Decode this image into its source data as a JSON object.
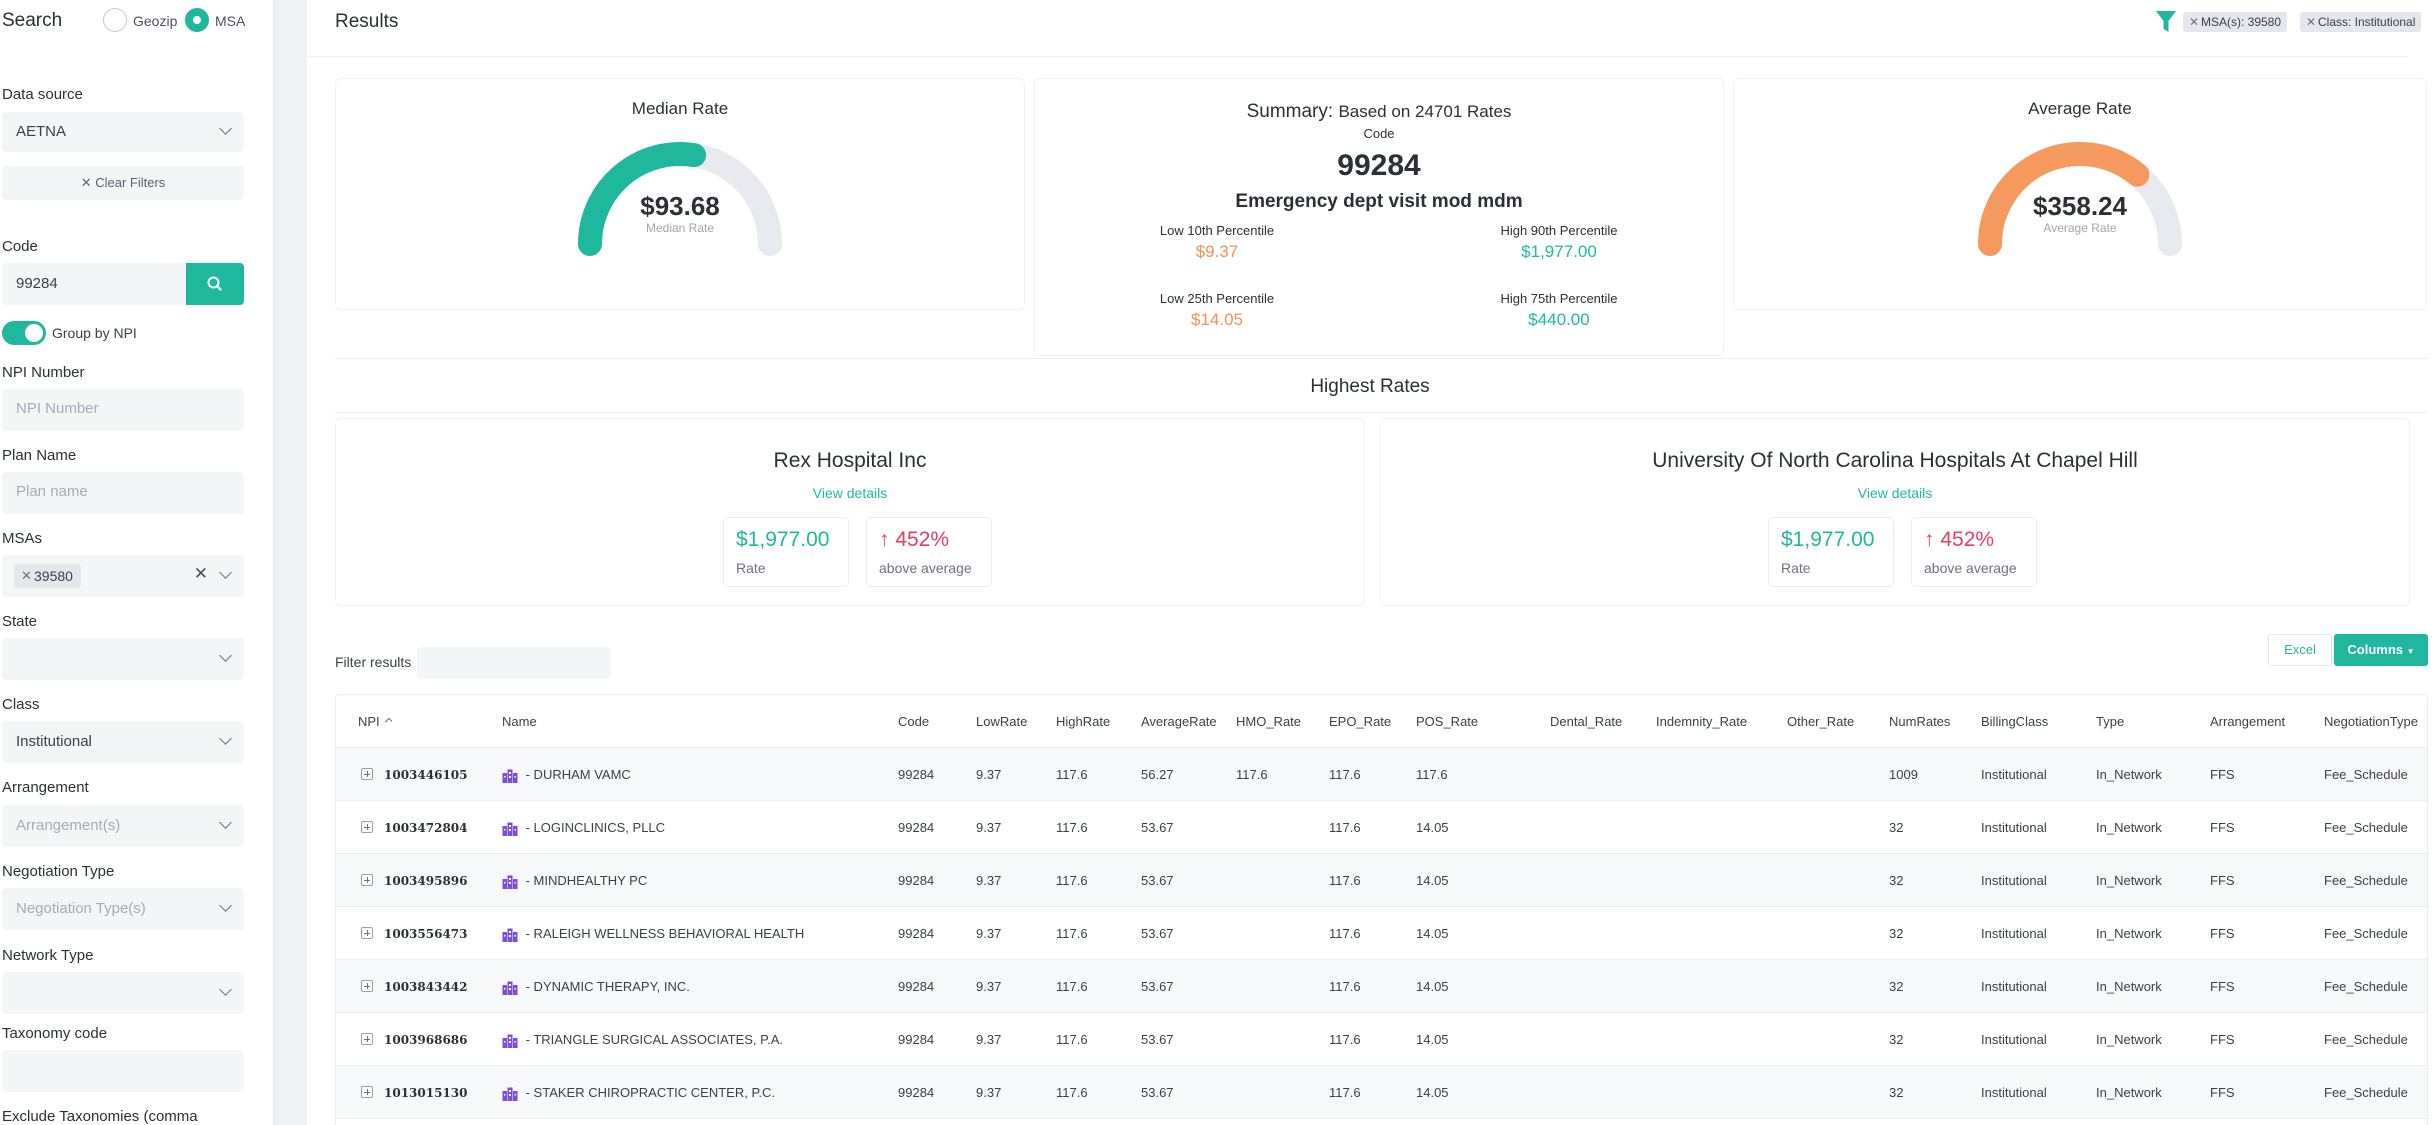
{
  "sidebar": {
    "title": "Search",
    "radio_geozip": "Geozip",
    "radio_msa": "MSA",
    "data_source_label": "Data source",
    "data_source_value": "AETNA",
    "clear_filters": "Clear Filters",
    "code_label": "Code",
    "code_value": "99284",
    "group_by_npi": "Group by NPI",
    "npi_label": "NPI Number",
    "npi_placeholder": "NPI Number",
    "plan_label": "Plan Name",
    "plan_placeholder": "Plan name",
    "msas_label": "MSAs",
    "msa_chip": "39580",
    "state_label": "State",
    "class_label": "Class",
    "class_value": "Institutional",
    "arrangement_label": "Arrangement",
    "arrangement_placeholder": "Arrangement(s)",
    "negotiation_label": "Negotiation Type",
    "negotiation_placeholder": "Negotiation Type(s)",
    "network_label": "Network Type",
    "taxonomy_label": "Taxonomy code",
    "exclude_label": "Exclude Taxonomies (comma"
  },
  "header": {
    "title": "Results",
    "tags": [
      "MSA(s): 39580",
      "Class: Institutional"
    ]
  },
  "median": {
    "title": "Median Rate",
    "value": "$93.68",
    "sub": "Median Rate",
    "fraction": 0.55
  },
  "average": {
    "title": "Average Rate",
    "value": "$358.24",
    "sub": "Average Rate",
    "fraction": 0.72
  },
  "summary": {
    "title_bold": "Summary:",
    "title_rest": "Based on 24701 Rates",
    "code_label": "Code",
    "code": "99284",
    "description": "Emergency dept visit mod mdm",
    "low10_label": "Low 10th Percentile",
    "low10": "$9.37",
    "high90_label": "High 90th Percentile",
    "high90": "$1,977.00",
    "low25_label": "Low 25th Percentile",
    "low25": "$14.05",
    "high75_label": "High 75th Percentile",
    "high75": "$440.00"
  },
  "highest": {
    "title": "Highest Rates",
    "cards": [
      {
        "name": "Rex Hospital Inc",
        "link": "View details",
        "rate": "$1,977.00",
        "rate_caption": "Rate",
        "pct": "452%",
        "pct_caption": "above average"
      },
      {
        "name": "University Of North Carolina Hospitals At Chapel Hill",
        "link": "View details",
        "rate": "$1,977.00",
        "rate_caption": "Rate",
        "pct": "452%",
        "pct_caption": "above average"
      }
    ]
  },
  "toolbar": {
    "filter_label": "Filter results",
    "excel": "Excel",
    "columns": "Columns"
  },
  "table": {
    "columns": [
      "NPI",
      "Name",
      "Code",
      "LowRate",
      "HighRate",
      "AverageRate",
      "HMO_Rate",
      "EPO_Rate",
      "POS_Rate",
      "Dental_Rate",
      "Indemnity_Rate",
      "Other_Rate",
      "NumRates",
      "BillingClass",
      "Type",
      "Arrangement",
      "NegotiationType"
    ],
    "rows": [
      [
        "1003446105",
        " - DURHAM VAMC",
        "99284",
        "9.37",
        "117.6",
        "56.27",
        "117.6",
        "117.6",
        "117.6",
        "",
        "",
        "",
        "1009",
        "Institutional",
        "In_Network",
        "FFS",
        "Fee_Schedule"
      ],
      [
        "1003472804",
        " - LOGINCLINICS, PLLC",
        "99284",
        "9.37",
        "117.6",
        "53.67",
        "",
        "117.6",
        "14.05",
        "",
        "",
        "",
        "32",
        "Institutional",
        "In_Network",
        "FFS",
        "Fee_Schedule"
      ],
      [
        "1003495896",
        " - MINDHEALTHY PC",
        "99284",
        "9.37",
        "117.6",
        "53.67",
        "",
        "117.6",
        "14.05",
        "",
        "",
        "",
        "32",
        "Institutional",
        "In_Network",
        "FFS",
        "Fee_Schedule"
      ],
      [
        "1003556473",
        " - RALEIGH WELLNESS BEHAVIORAL HEALTH",
        "99284",
        "9.37",
        "117.6",
        "53.67",
        "",
        "117.6",
        "14.05",
        "",
        "",
        "",
        "32",
        "Institutional",
        "In_Network",
        "FFS",
        "Fee_Schedule"
      ],
      [
        "1003843442",
        " - DYNAMIC THERAPY, INC.",
        "99284",
        "9.37",
        "117.6",
        "53.67",
        "",
        "117.6",
        "14.05",
        "",
        "",
        "",
        "32",
        "Institutional",
        "In_Network",
        "FFS",
        "Fee_Schedule"
      ],
      [
        "1003968686",
        " - TRIANGLE SURGICAL ASSOCIATES, P.A.",
        "99284",
        "9.37",
        "117.6",
        "53.67",
        "",
        "117.6",
        "14.05",
        "",
        "",
        "",
        "32",
        "Institutional",
        "In_Network",
        "FFS",
        "Fee_Schedule"
      ],
      [
        "1013015130",
        " - STAKER CHIROPRACTIC CENTER, P.C.",
        "99284",
        "9.37",
        "117.6",
        "53.67",
        "",
        "117.6",
        "14.05",
        "",
        "",
        "",
        "32",
        "Institutional",
        "In_Network",
        "FFS",
        "Fee_Schedule"
      ]
    ]
  },
  "colors": {
    "accent": "#1fb89e",
    "orange": "#f39152",
    "red": "#e53e5f",
    "track": "#e8eaef",
    "building_icon": "#7c4ddb"
  }
}
